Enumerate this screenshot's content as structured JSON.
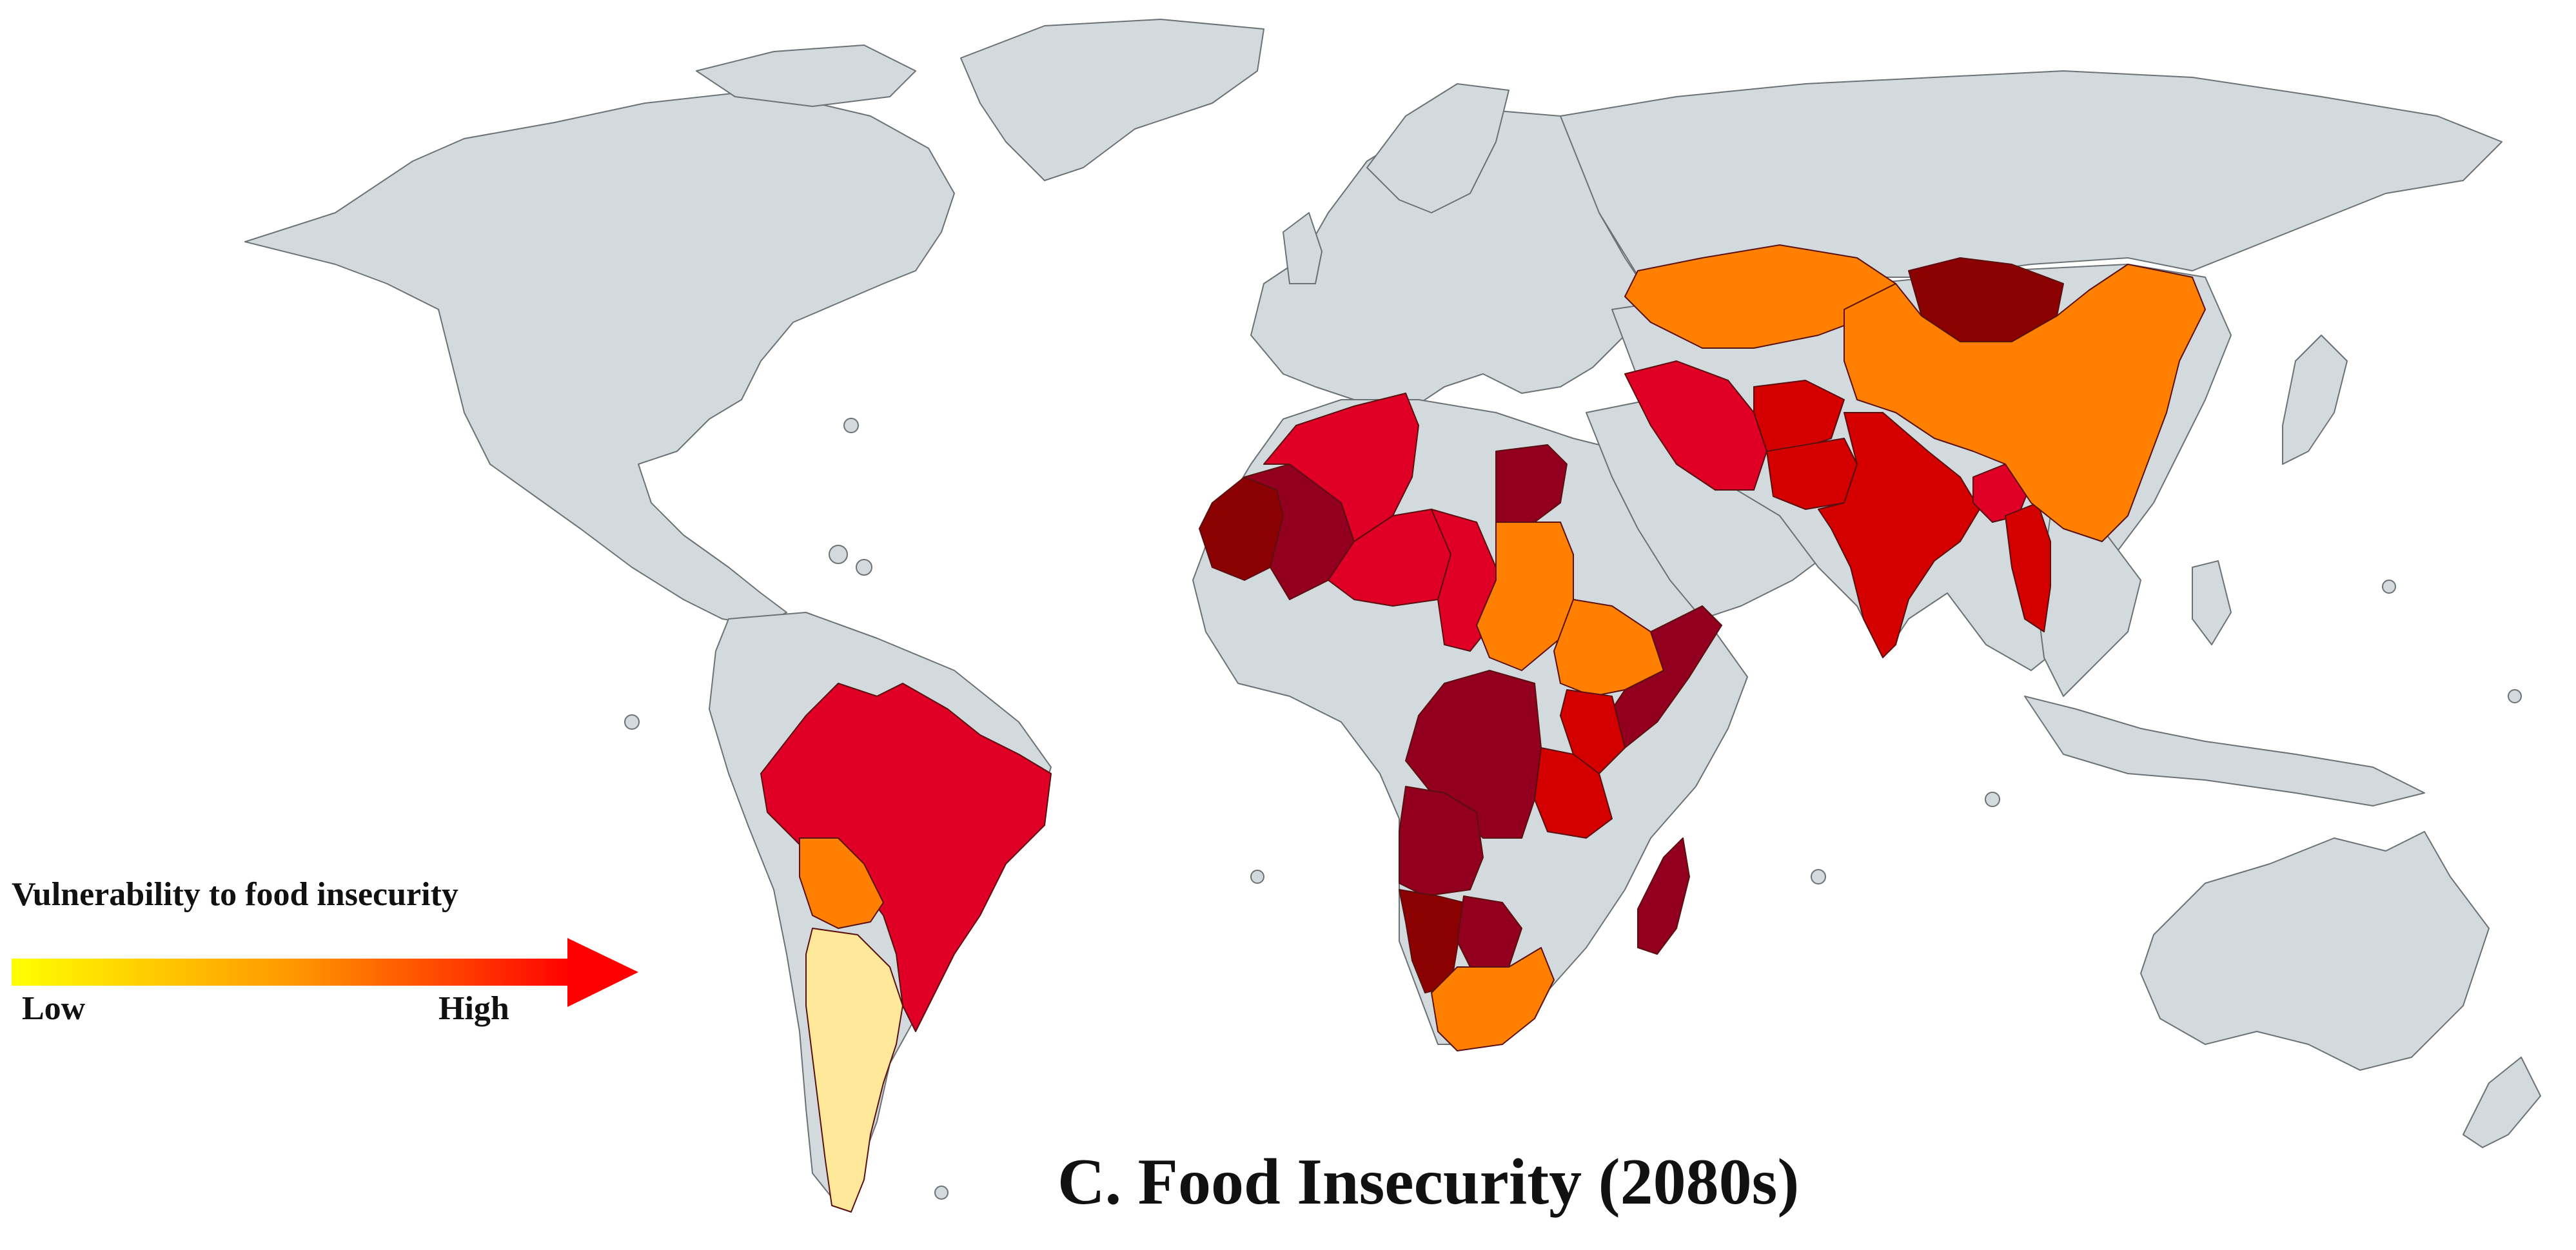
{
  "title": "C. Food Insecurity (2080s)",
  "legend": {
    "title": "Vulnerability to food insecurity",
    "low_label": "Low",
    "high_label": "High",
    "gradient_colors": [
      "#ffff00",
      "#ff8c00",
      "#ff0000"
    ]
  },
  "colors": {
    "land_no_data": "#d3dadd",
    "low": "#ffe89a",
    "medium": "#ff8000",
    "high": "#e00025",
    "higher": "#d40000",
    "very_high": "#93001f",
    "highest": "#8b0000",
    "ocean": "#ffffff"
  },
  "regions": [
    {
      "name": "Argentina",
      "level": "low"
    },
    {
      "name": "Bolivia",
      "level": "medium"
    },
    {
      "name": "Brazil",
      "level": "high"
    },
    {
      "name": "Algeria",
      "level": "high"
    },
    {
      "name": "Mauritania",
      "level": "highest"
    },
    {
      "name": "Mali",
      "level": "very_high"
    },
    {
      "name": "Niger",
      "level": "high"
    },
    {
      "name": "Chad",
      "level": "high"
    },
    {
      "name": "Egypt",
      "level": "very_high"
    },
    {
      "name": "Sudan",
      "level": "medium"
    },
    {
      "name": "Ethiopia",
      "level": "medium"
    },
    {
      "name": "Somalia",
      "level": "very_high"
    },
    {
      "name": "Kenya",
      "level": "higher"
    },
    {
      "name": "Tanzania",
      "level": "higher"
    },
    {
      "name": "DR Congo",
      "level": "very_high"
    },
    {
      "name": "Angola",
      "level": "very_high"
    },
    {
      "name": "Namibia",
      "level": "highest"
    },
    {
      "name": "Botswana",
      "level": "very_high"
    },
    {
      "name": "South Africa",
      "level": "medium"
    },
    {
      "name": "Madagascar",
      "level": "very_high"
    },
    {
      "name": "Iran",
      "level": "high"
    },
    {
      "name": "Afghanistan",
      "level": "higher"
    },
    {
      "name": "Pakistan",
      "level": "higher"
    },
    {
      "name": "India",
      "level": "higher"
    },
    {
      "name": "Bangladesh",
      "level": "high"
    },
    {
      "name": "Myanmar",
      "level": "higher"
    },
    {
      "name": "Kazakhstan",
      "level": "medium"
    },
    {
      "name": "Mongolia",
      "level": "highest"
    },
    {
      "name": "China",
      "level": "medium"
    }
  ]
}
